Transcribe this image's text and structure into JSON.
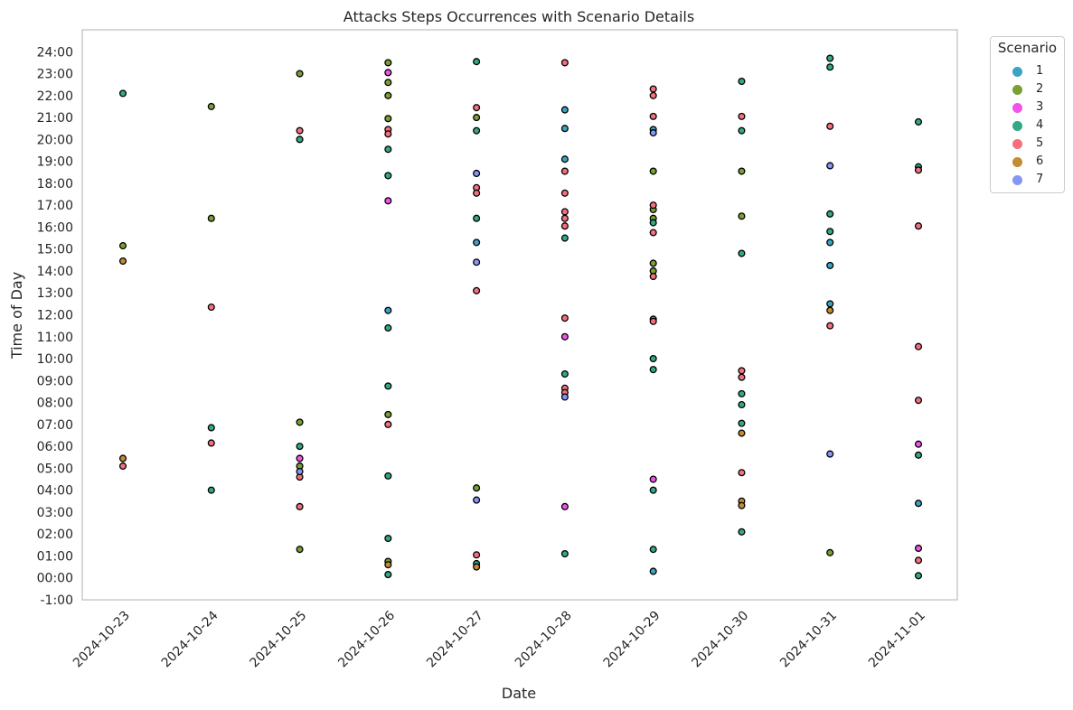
{
  "chart_data": {
    "type": "scatter",
    "title": "Attacks Steps Occurrences with Scenario Details",
    "xlabel": "Date",
    "ylabel": "Time of Day",
    "x_categories": [
      "2024-10-23",
      "2024-10-24",
      "2024-10-25",
      "2024-10-26",
      "2024-10-27",
      "2024-10-28",
      "2024-10-29",
      "2024-10-30",
      "2024-10-31",
      "2024-11-01"
    ],
    "y_ticks": [
      "-1:00",
      "00:00",
      "01:00",
      "02:00",
      "03:00",
      "04:00",
      "05:00",
      "06:00",
      "07:00",
      "08:00",
      "09:00",
      "10:00",
      "11:00",
      "12:00",
      "13:00",
      "14:00",
      "15:00",
      "16:00",
      "17:00",
      "18:00",
      "19:00",
      "20:00",
      "21:00",
      "22:00",
      "23:00",
      "24:00"
    ],
    "ylim_hours": [
      -1,
      25
    ],
    "grid": true,
    "legend": {
      "title": "Scenario",
      "placement": "outside-top-right"
    },
    "scenario_colors": {
      "1": "#3ba3c3",
      "2": "#7a9f32",
      "3": "#f253e9",
      "4": "#32a885",
      "5": "#f5707c",
      "6": "#c48c30",
      "7": "#8497f5"
    },
    "series": [
      {
        "name": "1",
        "points": [
          [
            "2024-10-26",
            12.2
          ],
          [
            "2024-10-27",
            15.3
          ],
          [
            "2024-10-28",
            21.35
          ],
          [
            "2024-10-28",
            19.1
          ],
          [
            "2024-10-28",
            20.5
          ],
          [
            "2024-10-29",
            20.45
          ],
          [
            "2024-10-29",
            0.3
          ],
          [
            "2024-10-31",
            15.3
          ],
          [
            "2024-10-31",
            14.25
          ],
          [
            "2024-10-31",
            12.5
          ],
          [
            "2024-11-01",
            3.4
          ]
        ]
      },
      {
        "name": "2",
        "points": [
          [
            "2024-10-23",
            15.15
          ],
          [
            "2024-10-24",
            21.5
          ],
          [
            "2024-10-24",
            16.4
          ],
          [
            "2024-10-25",
            23.0
          ],
          [
            "2024-10-25",
            7.1
          ],
          [
            "2024-10-25",
            5.1
          ],
          [
            "2024-10-25",
            1.3
          ],
          [
            "2024-10-26",
            23.5
          ],
          [
            "2024-10-26",
            22.6
          ],
          [
            "2024-10-26",
            22.0
          ],
          [
            "2024-10-26",
            20.95
          ],
          [
            "2024-10-26",
            7.45
          ],
          [
            "2024-10-26",
            0.75
          ],
          [
            "2024-10-27",
            21.0
          ],
          [
            "2024-10-27",
            4.1
          ],
          [
            "2024-10-29",
            18.55
          ],
          [
            "2024-10-29",
            16.8
          ],
          [
            "2024-10-29",
            16.4
          ],
          [
            "2024-10-29",
            14.35
          ],
          [
            "2024-10-29",
            14.0
          ],
          [
            "2024-10-30",
            18.55
          ],
          [
            "2024-10-30",
            16.5
          ],
          [
            "2024-10-31",
            1.15
          ]
        ]
      },
      {
        "name": "3",
        "points": [
          [
            "2024-10-25",
            5.45
          ],
          [
            "2024-10-26",
            23.05
          ],
          [
            "2024-10-26",
            17.2
          ],
          [
            "2024-10-28",
            11.0
          ],
          [
            "2024-10-28",
            3.25
          ],
          [
            "2024-10-29",
            4.5
          ],
          [
            "2024-11-01",
            6.1
          ],
          [
            "2024-11-01",
            1.35
          ]
        ]
      },
      {
        "name": "4",
        "points": [
          [
            "2024-10-23",
            22.1
          ],
          [
            "2024-10-24",
            6.85
          ],
          [
            "2024-10-24",
            4.0
          ],
          [
            "2024-10-25",
            20.0
          ],
          [
            "2024-10-25",
            6.0
          ],
          [
            "2024-10-26",
            19.55
          ],
          [
            "2024-10-26",
            18.35
          ],
          [
            "2024-10-26",
            11.4
          ],
          [
            "2024-10-26",
            8.75
          ],
          [
            "2024-10-26",
            4.65
          ],
          [
            "2024-10-26",
            1.8
          ],
          [
            "2024-10-26",
            0.15
          ],
          [
            "2024-10-27",
            23.55
          ],
          [
            "2024-10-27",
            20.4
          ],
          [
            "2024-10-27",
            16.4
          ],
          [
            "2024-10-27",
            0.65
          ],
          [
            "2024-10-28",
            15.5
          ],
          [
            "2024-10-28",
            9.3
          ],
          [
            "2024-10-28",
            1.1
          ],
          [
            "2024-10-29",
            16.2
          ],
          [
            "2024-10-29",
            11.8
          ],
          [
            "2024-10-29",
            10.0
          ],
          [
            "2024-10-29",
            9.5
          ],
          [
            "2024-10-29",
            4.0
          ],
          [
            "2024-10-29",
            1.3
          ],
          [
            "2024-10-30",
            22.65
          ],
          [
            "2024-10-30",
            20.4
          ],
          [
            "2024-10-30",
            14.8
          ],
          [
            "2024-10-30",
            8.4
          ],
          [
            "2024-10-30",
            7.9
          ],
          [
            "2024-10-30",
            7.05
          ],
          [
            "2024-10-30",
            2.1
          ],
          [
            "2024-10-31",
            23.7
          ],
          [
            "2024-10-31",
            23.3
          ],
          [
            "2024-10-31",
            16.6
          ],
          [
            "2024-10-31",
            15.8
          ],
          [
            "2024-11-01",
            20.8
          ],
          [
            "2024-11-01",
            18.75
          ],
          [
            "2024-11-01",
            5.6
          ],
          [
            "2024-11-01",
            0.1
          ]
        ]
      },
      {
        "name": "5",
        "points": [
          [
            "2024-10-23",
            5.1
          ],
          [
            "2024-10-24",
            12.35
          ],
          [
            "2024-10-24",
            6.15
          ],
          [
            "2024-10-25",
            20.4
          ],
          [
            "2024-10-25",
            4.6
          ],
          [
            "2024-10-25",
            3.25
          ],
          [
            "2024-10-26",
            20.45
          ],
          [
            "2024-10-26",
            20.25
          ],
          [
            "2024-10-26",
            7.0
          ],
          [
            "2024-10-27",
            21.45
          ],
          [
            "2024-10-27",
            17.8
          ],
          [
            "2024-10-27",
            17.55
          ],
          [
            "2024-10-27",
            13.1
          ],
          [
            "2024-10-27",
            1.05
          ],
          [
            "2024-10-28",
            23.5
          ],
          [
            "2024-10-28",
            18.55
          ],
          [
            "2024-10-28",
            17.55
          ],
          [
            "2024-10-28",
            16.7
          ],
          [
            "2024-10-28",
            16.4
          ],
          [
            "2024-10-28",
            16.05
          ],
          [
            "2024-10-28",
            11.85
          ],
          [
            "2024-10-28",
            8.65
          ],
          [
            "2024-10-28",
            8.45
          ],
          [
            "2024-10-29",
            22.3
          ],
          [
            "2024-10-29",
            22.0
          ],
          [
            "2024-10-29",
            21.05
          ],
          [
            "2024-10-29",
            17.0
          ],
          [
            "2024-10-29",
            15.75
          ],
          [
            "2024-10-29",
            13.75
          ],
          [
            "2024-10-29",
            11.7
          ],
          [
            "2024-10-30",
            21.05
          ],
          [
            "2024-10-30",
            9.45
          ],
          [
            "2024-10-30",
            9.15
          ],
          [
            "2024-10-30",
            4.8
          ],
          [
            "2024-10-31",
            20.6
          ],
          [
            "2024-10-31",
            11.5
          ],
          [
            "2024-11-01",
            18.6
          ],
          [
            "2024-11-01",
            16.05
          ],
          [
            "2024-11-01",
            10.55
          ],
          [
            "2024-11-01",
            8.1
          ],
          [
            "2024-11-01",
            0.8
          ]
        ]
      },
      {
        "name": "6",
        "points": [
          [
            "2024-10-23",
            14.45
          ],
          [
            "2024-10-23",
            5.45
          ],
          [
            "2024-10-26",
            0.6
          ],
          [
            "2024-10-27",
            0.5
          ],
          [
            "2024-10-30",
            6.6
          ],
          [
            "2024-10-30",
            3.5
          ],
          [
            "2024-10-30",
            3.3
          ],
          [
            "2024-10-31",
            12.2
          ]
        ]
      },
      {
        "name": "7",
        "points": [
          [
            "2024-10-25",
            4.85
          ],
          [
            "2024-10-27",
            18.45
          ],
          [
            "2024-10-27",
            14.4
          ],
          [
            "2024-10-27",
            3.55
          ],
          [
            "2024-10-28",
            8.25
          ],
          [
            "2024-10-29",
            20.3
          ],
          [
            "2024-10-31",
            18.8
          ],
          [
            "2024-10-31",
            5.65
          ]
        ]
      }
    ]
  }
}
